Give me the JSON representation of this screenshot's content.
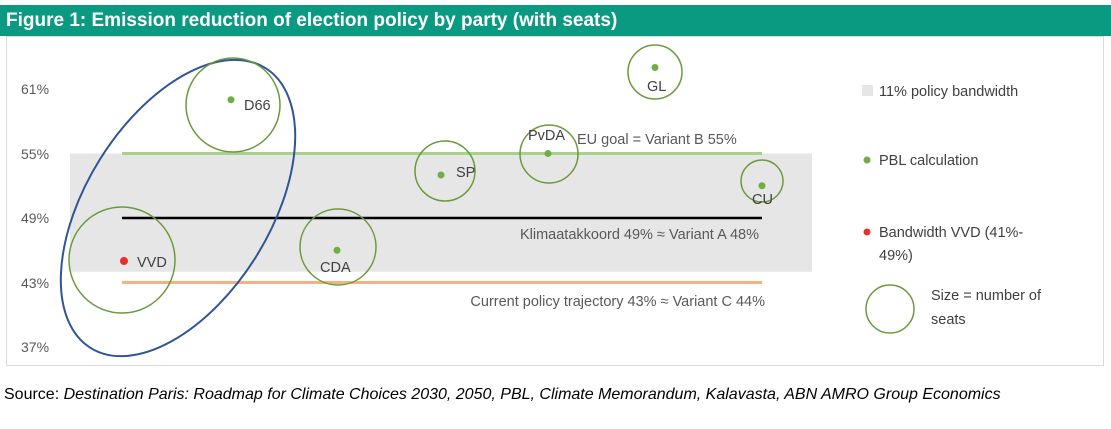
{
  "figure": {
    "title": "Figure 1: Emission reduction of election policy by party (with seats)"
  },
  "source": {
    "label": "Source:",
    "text": "Destination Paris: Roadmap for Climate Choices 2030, 2050, PBL, Climate Memorandum, Kalavasta, ABN AMRO Group Economics"
  },
  "colors": {
    "title_bg": "#0a9a82",
    "bandwidth_fill": "#e7e6e6",
    "pbl_dot": "#70ad47",
    "vvd_dot": "#e8302a",
    "seat_circle": "#6a9a3c",
    "eu_goal_line": "#a9d18e",
    "klimaat_line": "#000000",
    "current_line": "#f4b183",
    "vvd_ellipse": "#2f5597"
  },
  "chart_data": {
    "type": "scatter",
    "title": "Emission reduction of election policy by party (with seats)",
    "y_ticks": [
      "61%",
      "55%",
      "49%",
      "43%",
      "37%"
    ],
    "y_tick_values": [
      61,
      55,
      49,
      43,
      37
    ],
    "ylim": [
      37,
      63
    ],
    "bandwidth": {
      "from": 44,
      "to": 55,
      "label": "11% policy bandwidth"
    },
    "reference_lines": [
      {
        "name": "eu_goal",
        "value": 55,
        "label": "EU goal = Variant B 55%"
      },
      {
        "name": "klimaatakkoord",
        "value": 49,
        "label": "Klimaatakkoord 49% ≈ Variant A 48%"
      },
      {
        "name": "current_policy",
        "value": 43,
        "label": "Current policy trajectory 43% ≈ Variant C 44%"
      }
    ],
    "points": [
      {
        "party": "VVD",
        "value": 45,
        "type": "bandwidth_vvd",
        "seats": "large"
      },
      {
        "party": "D66",
        "value": 60,
        "type": "pbl",
        "seats": "large"
      },
      {
        "party": "CDA",
        "value": 46,
        "type": "pbl",
        "seats": "large"
      },
      {
        "party": "SP",
        "value": 53,
        "type": "pbl",
        "seats": "medium"
      },
      {
        "party": "PvDA",
        "value": 55,
        "type": "pbl",
        "seats": "medium"
      },
      {
        "party": "GL",
        "value": 63,
        "type": "pbl",
        "seats": "small"
      },
      {
        "party": "CU",
        "value": 52,
        "type": "pbl",
        "seats": "small"
      }
    ],
    "legend": [
      {
        "key": "bandwidth",
        "label": "11% policy bandwidth"
      },
      {
        "key": "pbl",
        "label": "PBL calculation"
      },
      {
        "key": "vvd",
        "label_line1": "Bandwidth VVD (41%-",
        "label_line2": "49%)"
      },
      {
        "key": "size",
        "label_line1": "Size = number of",
        "label_line2": "seats"
      }
    ]
  }
}
